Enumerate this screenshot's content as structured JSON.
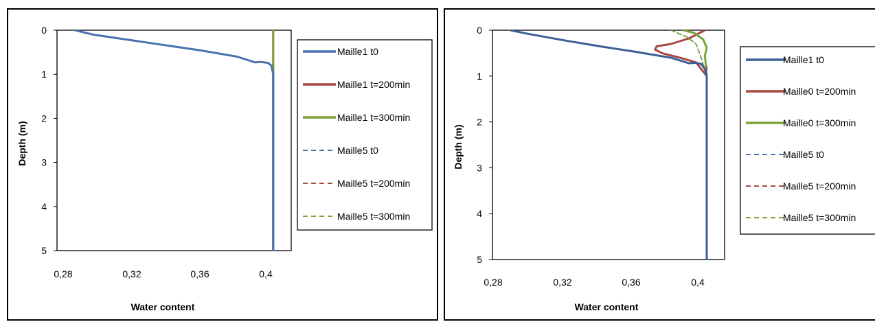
{
  "colors": {
    "blue": "#4a72b0",
    "dark_blue": "#3b5f98",
    "red": "#a84742",
    "green": "#7ba33a"
  },
  "chart_data": [
    {
      "type": "line",
      "xlabel": "Water content",
      "ylabel": "Depth (m)",
      "xlim": [
        0.28,
        0.41
      ],
      "ylim": [
        0,
        5
      ],
      "x_ticks": [
        "0,28",
        "0,32",
        "0,36",
        "0,4"
      ],
      "y_ticks": [
        "0",
        "1",
        "2",
        "3",
        "4",
        "5"
      ],
      "y_inverted": true,
      "legend_position": "right",
      "grid": false,
      "series": [
        {
          "name": "Maille1 t0",
          "color": "#4a72b0",
          "dash": false,
          "points": [
            [
              0.29,
              0
            ],
            [
              0.3,
              0.1
            ],
            [
              0.32,
              0.22
            ],
            [
              0.34,
              0.34
            ],
            [
              0.36,
              0.46
            ],
            [
              0.38,
              0.6
            ],
            [
              0.39,
              0.73
            ],
            [
              0.393,
              0.72
            ],
            [
              0.397,
              0.74
            ],
            [
              0.399,
              0.8
            ],
            [
              0.4,
              1.0
            ],
            [
              0.4,
              2.0
            ],
            [
              0.4,
              3.0
            ],
            [
              0.4,
              4.0
            ],
            [
              0.4,
              5.0
            ]
          ]
        },
        {
          "name": "Maille1 t=200min",
          "color": "#a84742",
          "dash": false,
          "points": [
            [
              0.4,
              0
            ],
            [
              0.4,
              5
            ]
          ]
        },
        {
          "name": "Maille1 t=300min",
          "color": "#7ba33a",
          "dash": false,
          "points": [
            [
              0.4,
              0
            ],
            [
              0.4,
              5
            ]
          ]
        },
        {
          "name": "Maille5 t0",
          "color": "#4a72b0",
          "dash": true,
          "points": [
            [
              0.4,
              0.8
            ],
            [
              0.4,
              5
            ]
          ]
        },
        {
          "name": "Maille5 t=200min",
          "color": "#a84742",
          "dash": true,
          "points": [
            [
              0.4,
              0.8
            ],
            [
              0.4,
              5
            ]
          ]
        },
        {
          "name": "Maille5 t=300min",
          "color": "#7ba33a",
          "dash": true,
          "points": [
            [
              0.4,
              0.8
            ],
            [
              0.4,
              5
            ]
          ]
        }
      ]
    },
    {
      "type": "line",
      "xlabel": "Water content",
      "ylabel": "Depth (m)",
      "xlim": [
        0.28,
        0.41
      ],
      "ylim": [
        0,
        5
      ],
      "x_ticks": [
        "0,28",
        "0,32",
        "0,36",
        "0,4"
      ],
      "y_ticks": [
        "0",
        "1",
        "2",
        "3",
        "4",
        "5"
      ],
      "y_inverted": true,
      "legend_position": "right",
      "grid": false,
      "series": [
        {
          "name": "Maille1 t0",
          "color": "#3b5f98",
          "dash": false,
          "points": [
            [
              0.29,
              0
            ],
            [
              0.3,
              0.08
            ],
            [
              0.32,
              0.22
            ],
            [
              0.34,
              0.35
            ],
            [
              0.36,
              0.47
            ],
            [
              0.38,
              0.6
            ],
            [
              0.39,
              0.72
            ],
            [
              0.394,
              0.71
            ],
            [
              0.397,
              0.74
            ],
            [
              0.399,
              0.85
            ],
            [
              0.4,
              1.0
            ],
            [
              0.4,
              2.0
            ],
            [
              0.4,
              3.0
            ],
            [
              0.4,
              4.0
            ],
            [
              0.4,
              5.0
            ]
          ]
        },
        {
          "name": "Maille0 t=200min",
          "color": "#a84742",
          "dash": false,
          "points": [
            [
              0.399,
              0
            ],
            [
              0.39,
              0.18
            ],
            [
              0.38,
              0.3
            ],
            [
              0.372,
              0.35
            ],
            [
              0.371,
              0.42
            ],
            [
              0.375,
              0.5
            ],
            [
              0.385,
              0.6
            ],
            [
              0.394,
              0.7
            ],
            [
              0.4,
              1.0
            ],
            [
              0.4,
              5.0
            ]
          ]
        },
        {
          "name": "Maille0 t=300min",
          "color": "#7ba33a",
          "dash": false,
          "points": [
            [
              0.387,
              0
            ],
            [
              0.393,
              0.06
            ],
            [
              0.398,
              0.2
            ],
            [
              0.4,
              0.38
            ],
            [
              0.399,
              0.55
            ],
            [
              0.4,
              1.0
            ],
            [
              0.4,
              5.0
            ]
          ]
        },
        {
          "name": "Maille5 t0",
          "color": "#4a72b0",
          "dash": true,
          "points": [
            [
              0.4,
              0.8
            ],
            [
              0.4,
              5.0
            ]
          ]
        },
        {
          "name": "Maille5 t=200min",
          "color": "#a84742",
          "dash": true,
          "points": [
            [
              0.4,
              0.8
            ],
            [
              0.4,
              5.0
            ]
          ]
        },
        {
          "name": "Maille5 t=300min",
          "color": "#7ba33a",
          "dash": true,
          "points": [
            [
              0.38,
              0
            ],
            [
              0.383,
              0.05
            ],
            [
              0.389,
              0.15
            ],
            [
              0.394,
              0.3
            ],
            [
              0.396,
              0.5
            ],
            [
              0.4,
              1.0
            ],
            [
              0.4,
              5.0
            ]
          ]
        }
      ]
    }
  ]
}
